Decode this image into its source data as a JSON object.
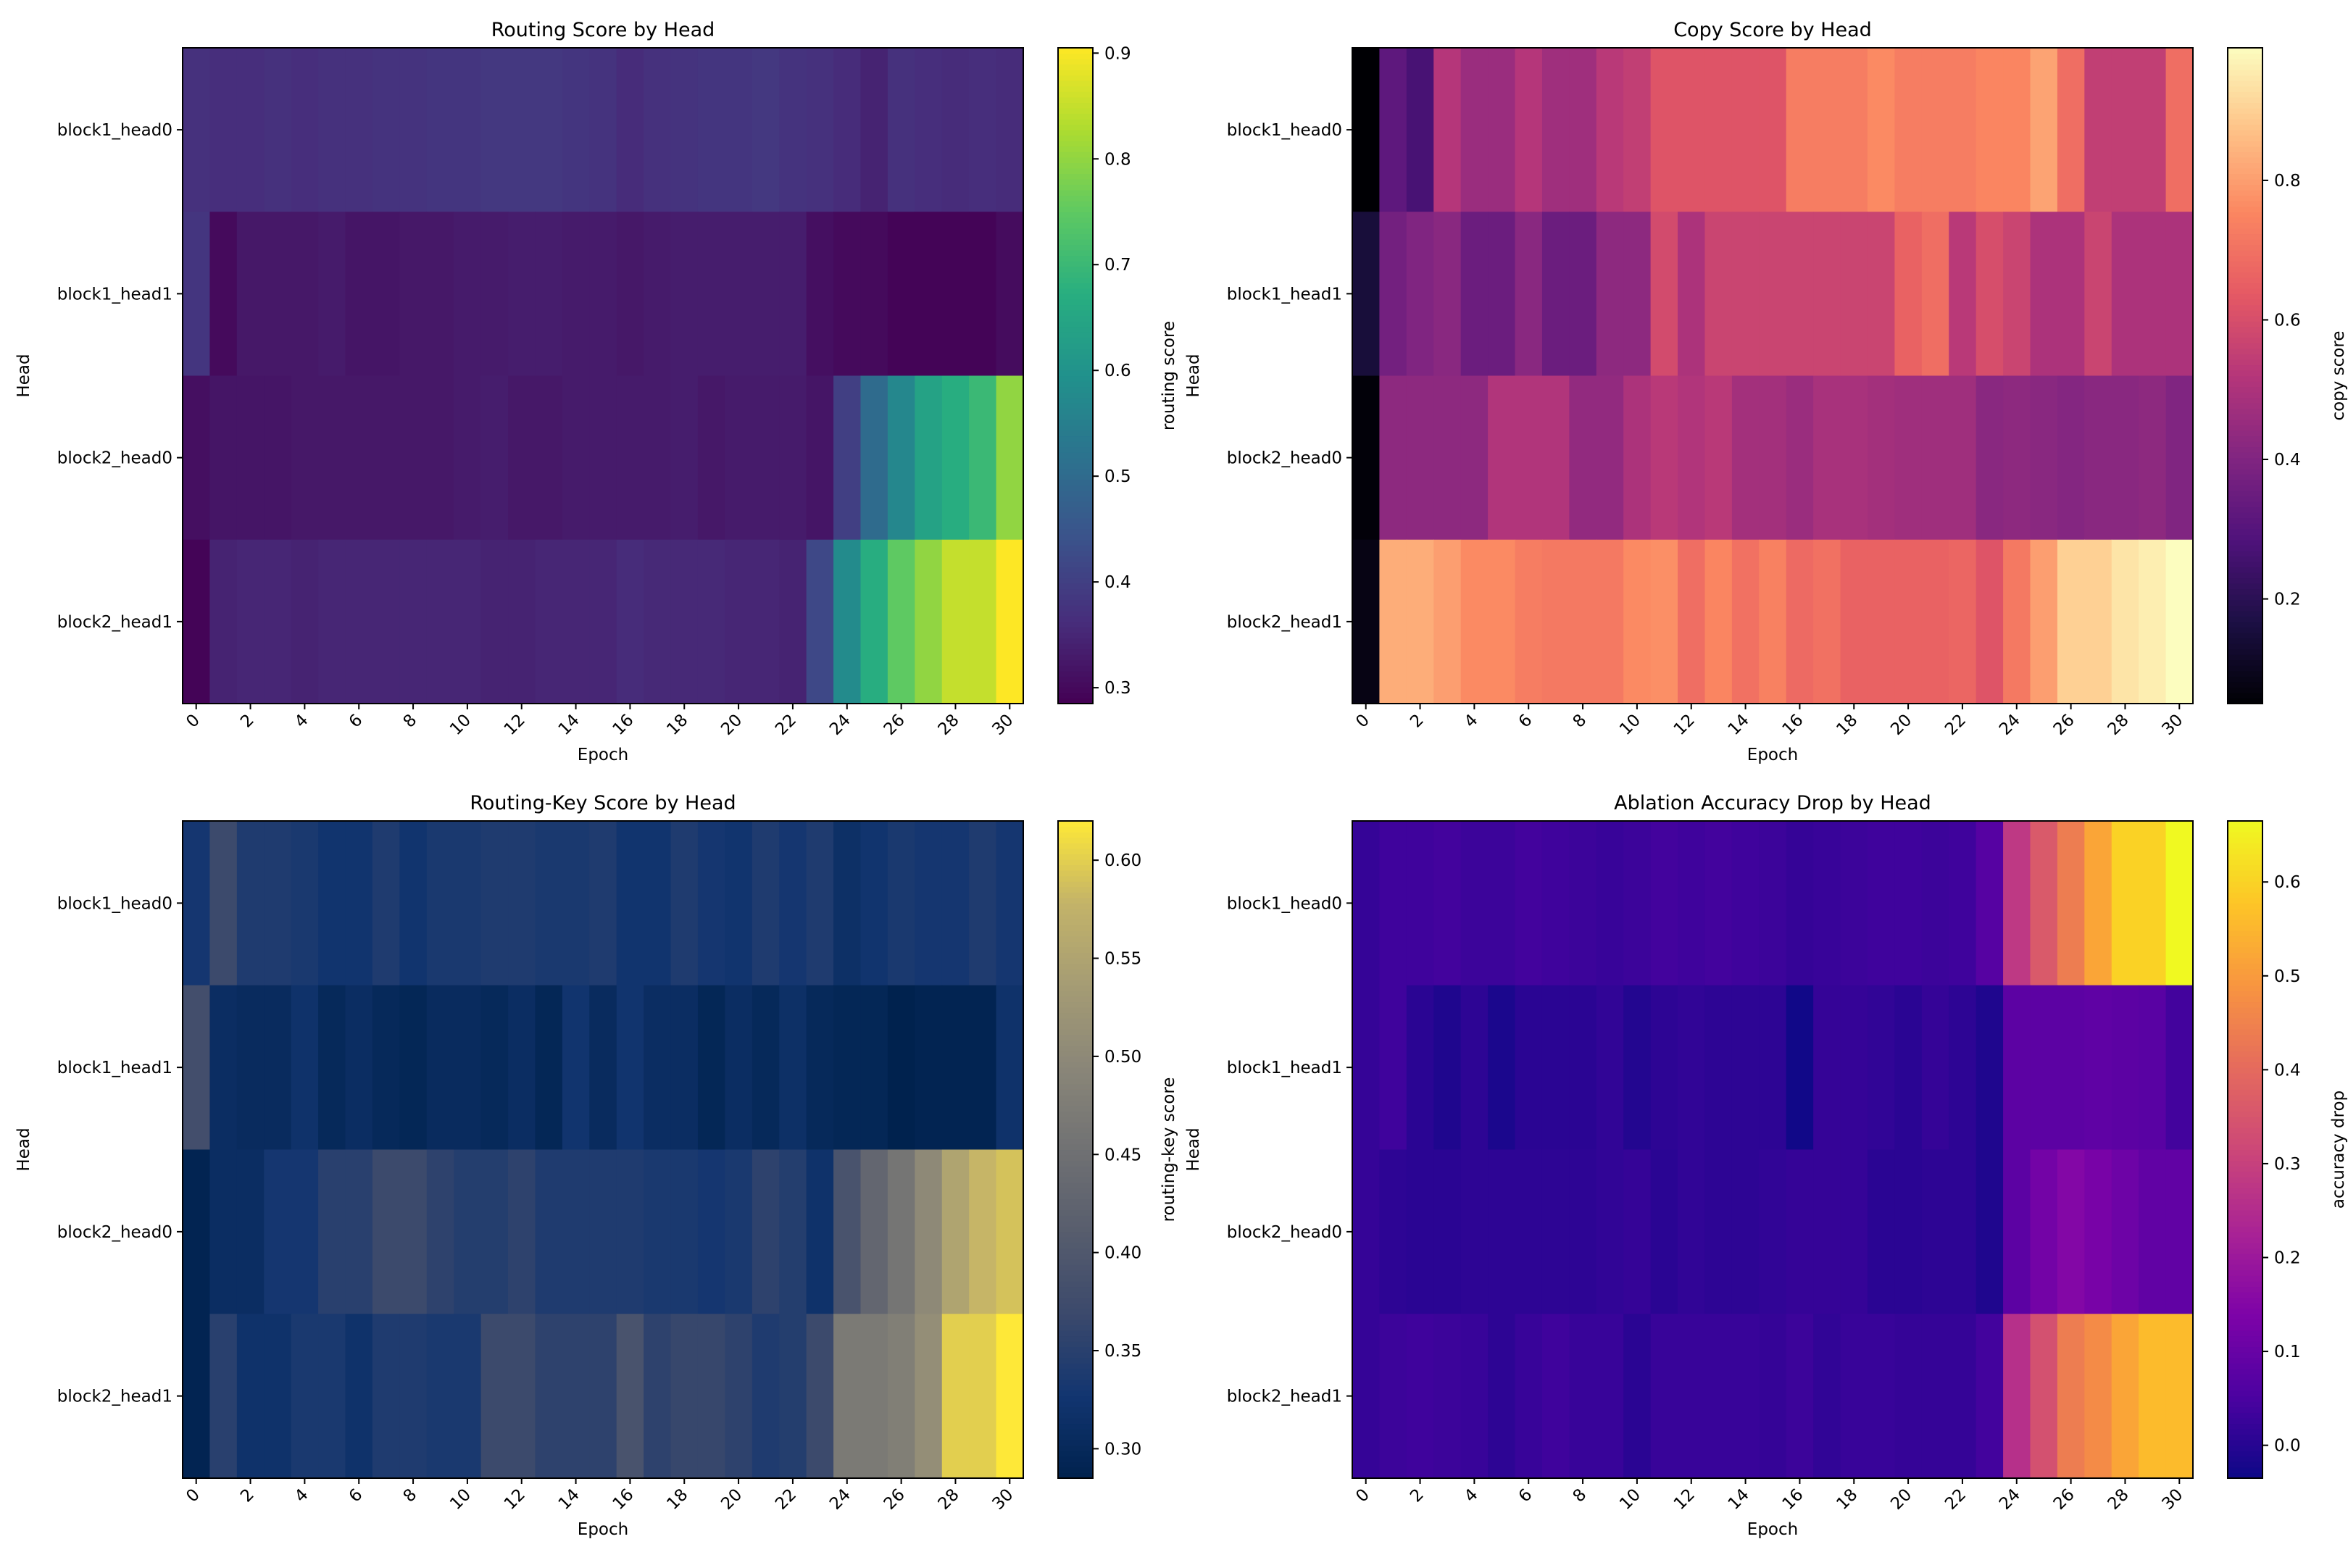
{
  "chart_data": [
    {
      "type": "heatmap",
      "title": "Routing Score by Head",
      "xlabel": "Epoch",
      "ylabel": "Head",
      "colorbar_label": "routing score",
      "colormap": "viridis",
      "color_range": [
        0.285,
        0.905
      ],
      "colorbar_ticks": [
        "0.3",
        "0.4",
        "0.5",
        "0.6",
        "0.7",
        "0.8",
        "0.9"
      ],
      "x_tick_labels": [
        "0",
        "2",
        "4",
        "6",
        "8",
        "10",
        "12",
        "14",
        "16",
        "18",
        "20",
        "22",
        "24",
        "26",
        "28",
        "30"
      ],
      "rows": [
        "block1_head0",
        "block1_head1",
        "block2_head0",
        "block2_head1"
      ],
      "values": [
        [
          0.37,
          0.365,
          0.365,
          0.37,
          0.365,
          0.37,
          0.37,
          0.375,
          0.375,
          0.38,
          0.38,
          0.385,
          0.385,
          0.385,
          0.38,
          0.375,
          0.36,
          0.37,
          0.375,
          0.38,
          0.38,
          0.385,
          0.375,
          0.37,
          0.36,
          0.345,
          0.37,
          0.365,
          0.36,
          0.365,
          0.36
        ],
        [
          0.38,
          0.3,
          0.325,
          0.325,
          0.325,
          0.33,
          0.32,
          0.32,
          0.325,
          0.325,
          0.33,
          0.33,
          0.335,
          0.335,
          0.33,
          0.33,
          0.325,
          0.33,
          0.335,
          0.335,
          0.335,
          0.335,
          0.335,
          0.31,
          0.3,
          0.3,
          0.29,
          0.29,
          0.29,
          0.29,
          0.305
        ],
        [
          0.31,
          0.32,
          0.32,
          0.32,
          0.325,
          0.325,
          0.325,
          0.325,
          0.325,
          0.325,
          0.33,
          0.335,
          0.325,
          0.325,
          0.33,
          0.33,
          0.33,
          0.33,
          0.335,
          0.325,
          0.33,
          0.33,
          0.33,
          0.32,
          0.4,
          0.5,
          0.57,
          0.64,
          0.67,
          0.7,
          0.8
        ],
        [
          0.29,
          0.345,
          0.35,
          0.35,
          0.345,
          0.35,
          0.35,
          0.35,
          0.35,
          0.35,
          0.35,
          0.345,
          0.345,
          0.35,
          0.35,
          0.35,
          0.36,
          0.355,
          0.355,
          0.355,
          0.35,
          0.35,
          0.345,
          0.42,
          0.58,
          0.67,
          0.75,
          0.8,
          0.85,
          0.85,
          0.905
        ]
      ]
    },
    {
      "type": "heatmap",
      "title": "Copy Score by Head",
      "xlabel": "Epoch",
      "ylabel": "Head",
      "colorbar_label": "copy score",
      "colormap": "magma",
      "color_range": [
        0.05,
        0.99
      ],
      "colorbar_ticks": [
        "0.2",
        "0.4",
        "0.6",
        "0.8"
      ],
      "x_tick_labels": [
        "0",
        "2",
        "4",
        "6",
        "8",
        "10",
        "12",
        "14",
        "16",
        "18",
        "20",
        "22",
        "24",
        "26",
        "28",
        "30"
      ],
      "rows": [
        "block1_head0",
        "block1_head1",
        "block2_head0",
        "block2_head1"
      ],
      "values": [
        [
          0.05,
          0.32,
          0.27,
          0.52,
          0.46,
          0.46,
          0.52,
          0.47,
          0.47,
          0.53,
          0.55,
          0.62,
          0.62,
          0.62,
          0.62,
          0.62,
          0.73,
          0.73,
          0.73,
          0.76,
          0.73,
          0.73,
          0.73,
          0.75,
          0.75,
          0.81,
          0.69,
          0.55,
          0.55,
          0.55,
          0.69
        ],
        [
          0.15,
          0.37,
          0.4,
          0.42,
          0.35,
          0.35,
          0.42,
          0.35,
          0.35,
          0.43,
          0.43,
          0.59,
          0.5,
          0.57,
          0.57,
          0.57,
          0.57,
          0.57,
          0.57,
          0.57,
          0.66,
          0.69,
          0.53,
          0.6,
          0.57,
          0.5,
          0.5,
          0.57,
          0.5,
          0.5,
          0.5
        ],
        [
          0.06,
          0.43,
          0.43,
          0.43,
          0.43,
          0.51,
          0.51,
          0.51,
          0.44,
          0.44,
          0.5,
          0.53,
          0.51,
          0.53,
          0.48,
          0.48,
          0.46,
          0.49,
          0.49,
          0.48,
          0.47,
          0.47,
          0.47,
          0.42,
          0.43,
          0.42,
          0.41,
          0.42,
          0.42,
          0.43,
          0.4
        ],
        [
          0.08,
          0.83,
          0.83,
          0.8,
          0.76,
          0.76,
          0.73,
          0.72,
          0.72,
          0.72,
          0.76,
          0.77,
          0.69,
          0.75,
          0.7,
          0.74,
          0.68,
          0.7,
          0.66,
          0.66,
          0.66,
          0.66,
          0.67,
          0.62,
          0.72,
          0.8,
          0.9,
          0.9,
          0.94,
          0.96,
          0.99
        ]
      ]
    },
    {
      "type": "heatmap",
      "title": "Routing-Key Score by Head",
      "xlabel": "Epoch",
      "ylabel": "Head",
      "colorbar_label": "routing-key score",
      "colormap": "cividis",
      "color_range": [
        0.285,
        0.62
      ],
      "colorbar_ticks": [
        "0.30",
        "0.35",
        "0.40",
        "0.45",
        "0.50",
        "0.55",
        "0.60"
      ],
      "x_tick_labels": [
        "0",
        "2",
        "4",
        "6",
        "8",
        "10",
        "12",
        "14",
        "16",
        "18",
        "20",
        "22",
        "24",
        "26",
        "28",
        "30"
      ],
      "rows": [
        "block1_head0",
        "block1_head1",
        "block2_head0",
        "block2_head1"
      ],
      "values": [
        [
          0.33,
          0.37,
          0.34,
          0.34,
          0.335,
          0.325,
          0.325,
          0.34,
          0.325,
          0.335,
          0.335,
          0.34,
          0.34,
          0.335,
          0.335,
          0.34,
          0.325,
          0.325,
          0.34,
          0.33,
          0.325,
          0.34,
          0.33,
          0.34,
          0.315,
          0.325,
          0.335,
          0.33,
          0.33,
          0.34,
          0.33
        ],
        [
          0.38,
          0.31,
          0.305,
          0.305,
          0.32,
          0.3,
          0.31,
          0.3,
          0.295,
          0.305,
          0.305,
          0.3,
          0.31,
          0.295,
          0.325,
          0.305,
          0.325,
          0.31,
          0.31,
          0.295,
          0.31,
          0.3,
          0.315,
          0.3,
          0.295,
          0.295,
          0.285,
          0.29,
          0.29,
          0.29,
          0.32
        ],
        [
          0.29,
          0.31,
          0.31,
          0.33,
          0.33,
          0.35,
          0.35,
          0.37,
          0.37,
          0.355,
          0.345,
          0.345,
          0.355,
          0.34,
          0.34,
          0.34,
          0.34,
          0.335,
          0.335,
          0.33,
          0.335,
          0.355,
          0.345,
          0.32,
          0.39,
          0.43,
          0.46,
          0.5,
          0.55,
          0.58,
          0.59
        ],
        [
          0.29,
          0.35,
          0.32,
          0.32,
          0.335,
          0.335,
          0.32,
          0.34,
          0.34,
          0.335,
          0.335,
          0.37,
          0.37,
          0.355,
          0.355,
          0.355,
          0.39,
          0.355,
          0.365,
          0.365,
          0.355,
          0.34,
          0.345,
          0.37,
          0.47,
          0.47,
          0.48,
          0.51,
          0.6,
          0.6,
          0.62
        ]
      ]
    },
    {
      "type": "heatmap",
      "title": "Ablation Accuracy Drop by Head",
      "xlabel": "Epoch",
      "ylabel": "Head",
      "colorbar_label": "accuracy drop",
      "colormap": "plasma",
      "color_range": [
        -0.035,
        0.665
      ],
      "colorbar_ticks": [
        "0.0",
        "0.1",
        "0.2",
        "0.3",
        "0.4",
        "0.5",
        "0.6"
      ],
      "x_tick_labels": [
        "0",
        "2",
        "4",
        "6",
        "8",
        "10",
        "12",
        "14",
        "16",
        "18",
        "20",
        "22",
        "24",
        "26",
        "28",
        "30"
      ],
      "rows": [
        "block1_head0",
        "block1_head1",
        "block2_head0",
        "block2_head1"
      ],
      "values": [
        [
          0.02,
          0.035,
          0.035,
          0.04,
          0.03,
          0.03,
          0.04,
          0.035,
          0.03,
          0.025,
          0.03,
          0.04,
          0.035,
          0.04,
          0.035,
          0.03,
          0.02,
          0.025,
          0.03,
          0.035,
          0.035,
          0.03,
          0.035,
          0.07,
          0.28,
          0.36,
          0.44,
          0.52,
          0.6,
          0.6,
          0.665
        ],
        [
          0.02,
          0.035,
          0.005,
          -0.01,
          0.01,
          -0.015,
          0.005,
          0.005,
          0.005,
          0.015,
          -0.005,
          0.01,
          0.015,
          0.01,
          0.01,
          0.01,
          -0.03,
          0.02,
          0.02,
          0.015,
          0.005,
          0.02,
          0.01,
          -0.01,
          0.08,
          0.08,
          0.08,
          0.085,
          0.08,
          0.075,
          0.04
        ],
        [
          0.02,
          0.01,
          0.005,
          0.005,
          0.01,
          0.01,
          0.01,
          0.01,
          0.01,
          0.015,
          0.02,
          0.005,
          0.015,
          0.01,
          0.01,
          0.015,
          0.02,
          0.02,
          0.02,
          0.005,
          0.005,
          0.01,
          0.01,
          -0.01,
          0.08,
          0.12,
          0.15,
          0.13,
          0.11,
          0.09,
          0.09
        ],
        [
          0.02,
          0.03,
          0.035,
          0.03,
          0.025,
          0.01,
          0.025,
          0.035,
          0.025,
          0.025,
          0.005,
          0.025,
          0.025,
          0.025,
          0.025,
          0.02,
          0.03,
          0.015,
          0.025,
          0.025,
          0.02,
          0.02,
          0.02,
          0.04,
          0.26,
          0.34,
          0.44,
          0.47,
          0.52,
          0.56,
          0.56
        ]
      ]
    }
  ]
}
